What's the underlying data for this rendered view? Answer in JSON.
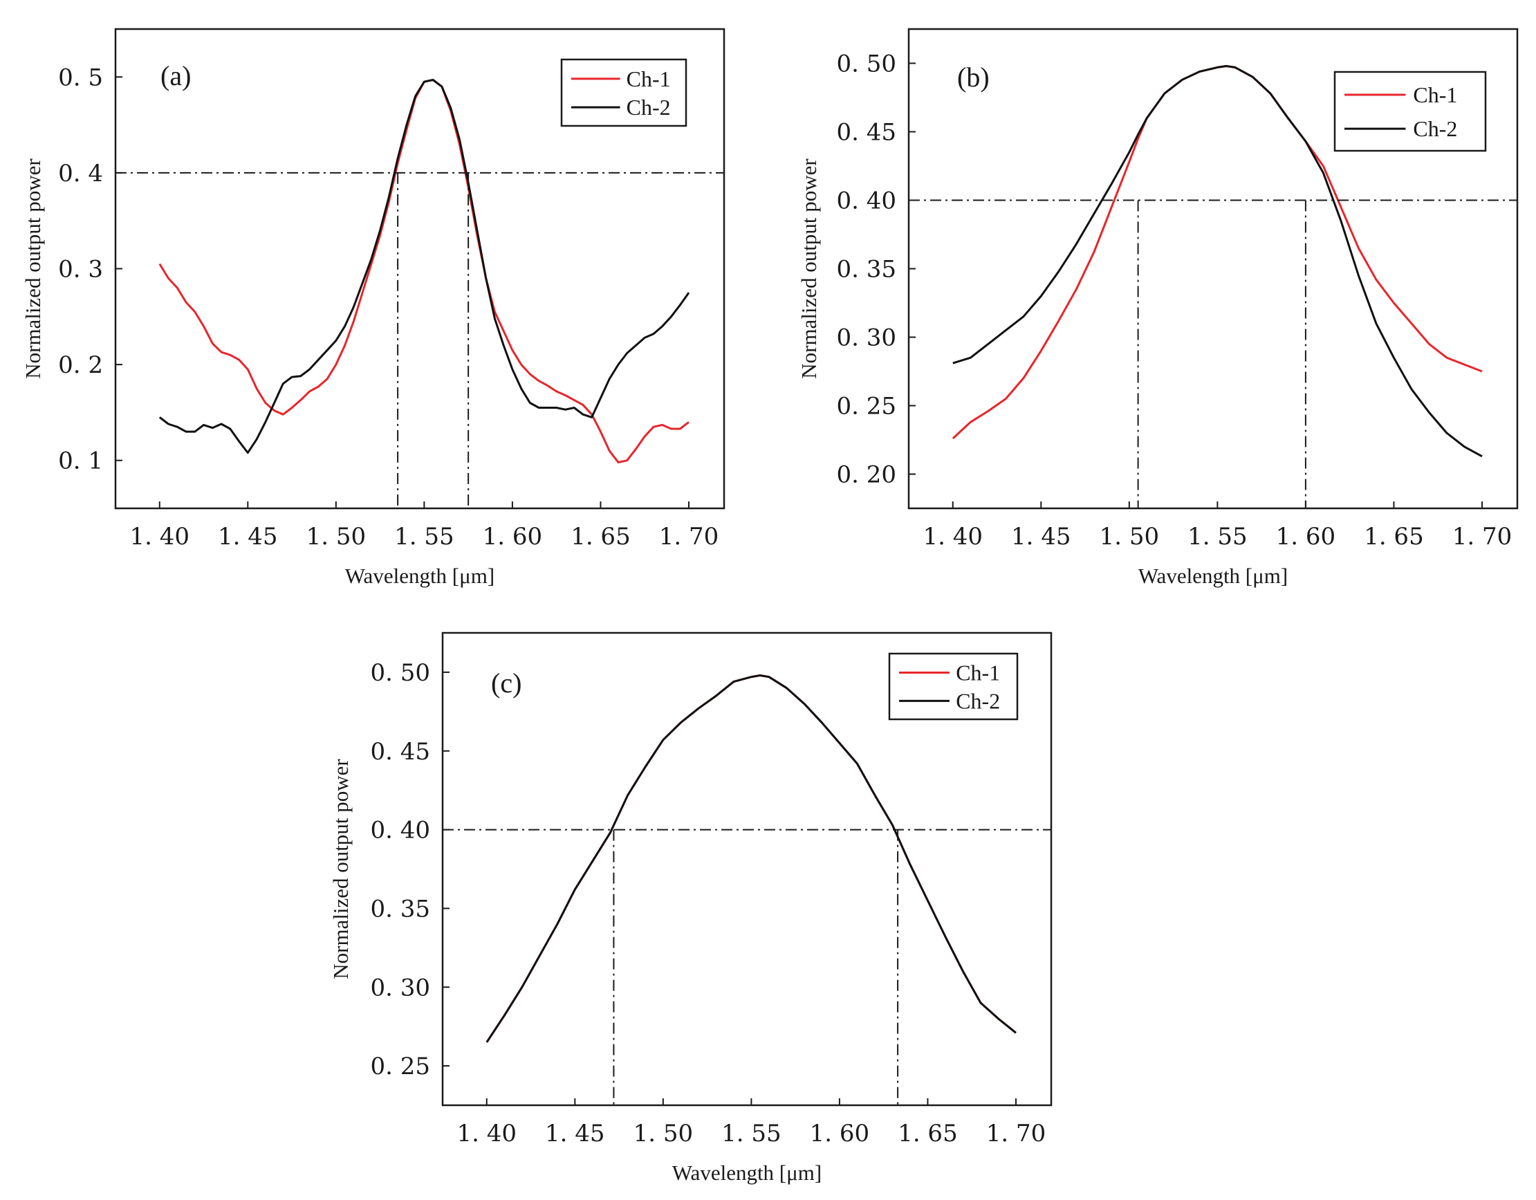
{
  "chart_data": [
    {
      "type": "line",
      "panel_label": "(a)",
      "xlabel": "Wavelength [μm]",
      "ylabel": "Normalized output power",
      "xlim": [
        1.375,
        1.72
      ],
      "ylim": [
        0.05,
        0.55
      ],
      "xticks": [
        1.4,
        1.45,
        1.5,
        1.55,
        1.6,
        1.65,
        1.7
      ],
      "xtick_labels": [
        "1. 40",
        "1. 45",
        "1. 50",
        "1. 55",
        "1. 60",
        "1. 65",
        "1. 70"
      ],
      "yticks": [
        0.1,
        0.2,
        0.3,
        0.4,
        0.5
      ],
      "ytick_labels": [
        "0. 1",
        "0. 2",
        "0. 3",
        "0. 4",
        "0. 5"
      ],
      "legend": {
        "position": "top-right",
        "entries": [
          "Ch-1",
          "Ch-2"
        ]
      },
      "reference_lines": {
        "horizontal": [
          0.4
        ],
        "vertical": [
          1.535,
          1.575
        ]
      },
      "series": [
        {
          "name": "Ch-1",
          "color": "#e8262b",
          "x": [
            1.4,
            1.405,
            1.41,
            1.415,
            1.42,
            1.425,
            1.43,
            1.435,
            1.44,
            1.445,
            1.45,
            1.455,
            1.46,
            1.465,
            1.47,
            1.475,
            1.48,
            1.485,
            1.49,
            1.495,
            1.5,
            1.505,
            1.51,
            1.515,
            1.52,
            1.525,
            1.53,
            1.535,
            1.54,
            1.545,
            1.55,
            1.555,
            1.56,
            1.565,
            1.57,
            1.575,
            1.58,
            1.585,
            1.59,
            1.595,
            1.6,
            1.605,
            1.61,
            1.615,
            1.62,
            1.625,
            1.63,
            1.635,
            1.64,
            1.645,
            1.65,
            1.655,
            1.66,
            1.665,
            1.67,
            1.675,
            1.68,
            1.685,
            1.69,
            1.695,
            1.7
          ],
          "y": [
            0.305,
            0.29,
            0.28,
            0.265,
            0.255,
            0.24,
            0.222,
            0.213,
            0.21,
            0.205,
            0.195,
            0.175,
            0.16,
            0.152,
            0.148,
            0.155,
            0.163,
            0.172,
            0.177,
            0.185,
            0.2,
            0.22,
            0.245,
            0.275,
            0.305,
            0.335,
            0.37,
            0.41,
            0.445,
            0.478,
            0.495,
            0.497,
            0.49,
            0.465,
            0.43,
            0.385,
            0.335,
            0.29,
            0.255,
            0.235,
            0.215,
            0.2,
            0.19,
            0.183,
            0.178,
            0.172,
            0.168,
            0.163,
            0.158,
            0.148,
            0.13,
            0.11,
            0.098,
            0.1,
            0.112,
            0.125,
            0.135,
            0.137,
            0.133,
            0.133,
            0.14
          ]
        },
        {
          "name": "Ch-2",
          "color": "#111111",
          "x": [
            1.4,
            1.405,
            1.41,
            1.415,
            1.42,
            1.425,
            1.43,
            1.435,
            1.44,
            1.445,
            1.45,
            1.455,
            1.46,
            1.465,
            1.47,
            1.475,
            1.48,
            1.485,
            1.49,
            1.495,
            1.5,
            1.505,
            1.51,
            1.515,
            1.52,
            1.525,
            1.53,
            1.535,
            1.54,
            1.545,
            1.55,
            1.555,
            1.56,
            1.565,
            1.57,
            1.575,
            1.58,
            1.585,
            1.59,
            1.595,
            1.6,
            1.605,
            1.61,
            1.615,
            1.62,
            1.625,
            1.63,
            1.635,
            1.64,
            1.645,
            1.65,
            1.655,
            1.66,
            1.665,
            1.67,
            1.675,
            1.68,
            1.685,
            1.69,
            1.695,
            1.7
          ],
          "y": [
            0.145,
            0.138,
            0.135,
            0.13,
            0.13,
            0.137,
            0.134,
            0.138,
            0.133,
            0.12,
            0.108,
            0.122,
            0.14,
            0.16,
            0.18,
            0.187,
            0.188,
            0.195,
            0.205,
            0.215,
            0.225,
            0.24,
            0.26,
            0.285,
            0.31,
            0.34,
            0.375,
            0.415,
            0.45,
            0.48,
            0.495,
            0.497,
            0.49,
            0.468,
            0.435,
            0.39,
            0.34,
            0.29,
            0.248,
            0.22,
            0.195,
            0.175,
            0.16,
            0.155,
            0.155,
            0.155,
            0.153,
            0.155,
            0.148,
            0.145,
            0.165,
            0.185,
            0.2,
            0.212,
            0.22,
            0.228,
            0.232,
            0.24,
            0.25,
            0.262,
            0.275
          ]
        }
      ]
    },
    {
      "type": "line",
      "panel_label": "(b)",
      "xlabel": "Wavelength [μm]",
      "ylabel": "Normalized output power",
      "xlim": [
        1.375,
        1.72
      ],
      "ylim": [
        0.175,
        0.525
      ],
      "xticks": [
        1.4,
        1.45,
        1.5,
        1.55,
        1.6,
        1.65,
        1.7
      ],
      "xtick_labels": [
        "1. 40",
        "1. 45",
        "1. 50",
        "1. 55",
        "1. 60",
        "1. 65",
        "1. 70"
      ],
      "yticks": [
        0.2,
        0.25,
        0.3,
        0.35,
        0.4,
        0.45,
        0.5
      ],
      "ytick_labels": [
        "0. 20",
        "0. 25",
        "0. 30",
        "0. 35",
        "0. 40",
        "0. 45",
        "0. 50"
      ],
      "legend": {
        "position": "top-right",
        "entries": [
          "Ch-1",
          "Ch-2"
        ]
      },
      "reference_lines": {
        "horizontal": [
          0.4
        ],
        "vertical": [
          1.505,
          1.6
        ]
      },
      "series": [
        {
          "name": "Ch-1",
          "color": "#e8262b",
          "x": [
            1.4,
            1.41,
            1.42,
            1.43,
            1.44,
            1.45,
            1.46,
            1.47,
            1.48,
            1.49,
            1.5,
            1.505,
            1.51,
            1.52,
            1.53,
            1.54,
            1.55,
            1.555,
            1.56,
            1.57,
            1.58,
            1.59,
            1.6,
            1.61,
            1.62,
            1.63,
            1.64,
            1.65,
            1.66,
            1.67,
            1.68,
            1.69,
            1.7
          ],
          "y": [
            0.226,
            0.238,
            0.246,
            0.255,
            0.27,
            0.29,
            0.312,
            0.335,
            0.362,
            0.395,
            0.428,
            0.445,
            0.46,
            0.478,
            0.488,
            0.494,
            0.497,
            0.498,
            0.497,
            0.49,
            0.478,
            0.46,
            0.443,
            0.425,
            0.395,
            0.365,
            0.342,
            0.325,
            0.31,
            0.295,
            0.285,
            0.28,
            0.275
          ]
        },
        {
          "name": "Ch-2",
          "color": "#111111",
          "x": [
            1.4,
            1.41,
            1.42,
            1.43,
            1.44,
            1.45,
            1.46,
            1.47,
            1.48,
            1.49,
            1.5,
            1.505,
            1.51,
            1.52,
            1.53,
            1.54,
            1.55,
            1.555,
            1.56,
            1.57,
            1.58,
            1.59,
            1.6,
            1.61,
            1.62,
            1.63,
            1.64,
            1.65,
            1.66,
            1.67,
            1.68,
            1.69,
            1.7
          ],
          "y": [
            0.281,
            0.285,
            0.295,
            0.305,
            0.315,
            0.33,
            0.348,
            0.368,
            0.39,
            0.412,
            0.435,
            0.448,
            0.46,
            0.478,
            0.488,
            0.494,
            0.497,
            0.498,
            0.497,
            0.49,
            0.478,
            0.46,
            0.443,
            0.42,
            0.385,
            0.345,
            0.31,
            0.285,
            0.262,
            0.245,
            0.23,
            0.22,
            0.213
          ]
        }
      ]
    },
    {
      "type": "line",
      "panel_label": "(c)",
      "xlabel": "Wavelength [μm]",
      "ylabel": "Normalized output power",
      "xlim": [
        1.375,
        1.72
      ],
      "ylim": [
        0.225,
        0.525
      ],
      "xticks": [
        1.4,
        1.45,
        1.5,
        1.55,
        1.6,
        1.65,
        1.7
      ],
      "xtick_labels": [
        "1. 40",
        "1. 45",
        "1. 50",
        "1. 55",
        "1. 60",
        "1. 65",
        "1. 70"
      ],
      "yticks": [
        0.25,
        0.3,
        0.35,
        0.4,
        0.45,
        0.5
      ],
      "ytick_labels": [
        "0. 25",
        "0. 30",
        "0. 35",
        "0. 40",
        "0. 45",
        "0. 50"
      ],
      "legend": {
        "position": "top-right",
        "entries": [
          "Ch-1",
          "Ch-2"
        ]
      },
      "reference_lines": {
        "horizontal": [
          0.4
        ],
        "vertical": [
          1.472,
          1.633
        ]
      },
      "series": [
        {
          "name": "Ch-1",
          "color": "#e8262b",
          "x": [
            1.4,
            1.41,
            1.42,
            1.43,
            1.44,
            1.45,
            1.46,
            1.47,
            1.48,
            1.49,
            1.5,
            1.51,
            1.52,
            1.53,
            1.54,
            1.55,
            1.555,
            1.56,
            1.57,
            1.58,
            1.59,
            1.6,
            1.61,
            1.62,
            1.63,
            1.64,
            1.65,
            1.66,
            1.67,
            1.68,
            1.69,
            1.7
          ],
          "y": [
            0.265,
            0.282,
            0.3,
            0.32,
            0.34,
            0.362,
            0.38,
            0.398,
            0.422,
            0.44,
            0.457,
            0.468,
            0.477,
            0.485,
            0.494,
            0.497,
            0.498,
            0.497,
            0.49,
            0.48,
            0.468,
            0.455,
            0.442,
            0.422,
            0.403,
            0.378,
            0.355,
            0.332,
            0.31,
            0.29,
            0.28,
            0.271
          ]
        },
        {
          "name": "Ch-2",
          "color": "#111111",
          "x": [
            1.4,
            1.41,
            1.42,
            1.43,
            1.44,
            1.45,
            1.46,
            1.47,
            1.48,
            1.49,
            1.5,
            1.51,
            1.52,
            1.53,
            1.54,
            1.55,
            1.555,
            1.56,
            1.57,
            1.58,
            1.59,
            1.6,
            1.61,
            1.62,
            1.63,
            1.64,
            1.65,
            1.66,
            1.67,
            1.68,
            1.69,
            1.7
          ],
          "y": [
            0.265,
            0.282,
            0.3,
            0.32,
            0.34,
            0.362,
            0.38,
            0.398,
            0.422,
            0.44,
            0.457,
            0.468,
            0.477,
            0.485,
            0.494,
            0.497,
            0.498,
            0.497,
            0.49,
            0.48,
            0.468,
            0.455,
            0.442,
            0.422,
            0.403,
            0.378,
            0.355,
            0.332,
            0.31,
            0.29,
            0.28,
            0.271
          ]
        }
      ]
    }
  ]
}
